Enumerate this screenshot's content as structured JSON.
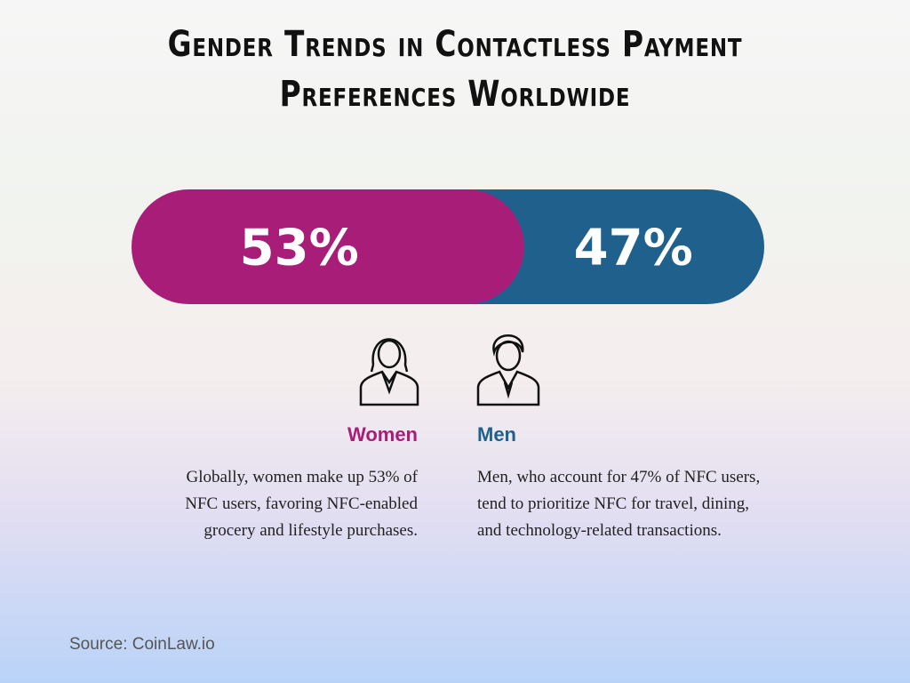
{
  "chart_data": {
    "type": "stacked-bar",
    "title": "Gender Trends in Contactless Payment Preferences Worldwide",
    "series": [
      {
        "name": "Women",
        "color": "#a81d78",
        "values": [
          53
        ],
        "value_labels": [
          "53%"
        ]
      },
      {
        "name": "Men",
        "color": "#1f618c",
        "values": [
          47
        ],
        "value_labels": [
          "47%"
        ]
      }
    ],
    "annotations": [
      "Globally, women make up 53% of NFC users, favoring NFC-enabled grocery and lifestyle purchases.",
      "Men, who account for 47% of NFC users, tend to prioritize NFC for travel, dining, and technology-related transactions."
    ],
    "source": "Source: CoinLaw.io"
  }
}
